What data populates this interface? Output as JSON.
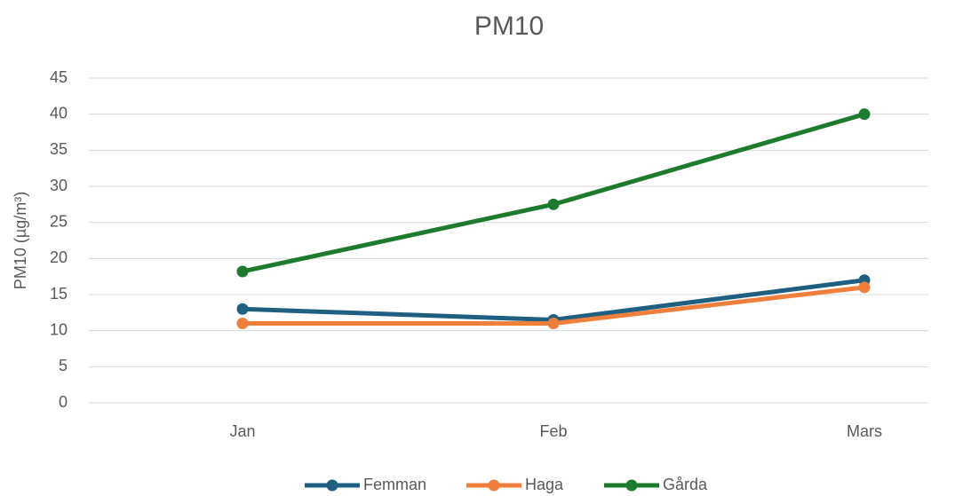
{
  "chart_data": {
    "type": "line",
    "title": "PM10",
    "y_label": "PM10 (µg/m³)",
    "categories": [
      "Jan",
      "Feb",
      "Mars"
    ],
    "series": [
      {
        "name": "Femman",
        "color": "#1f5f80",
        "values": [
          13,
          11.5,
          17
        ]
      },
      {
        "name": "Haga",
        "color": "#f07f3c",
        "values": [
          11,
          11,
          16
        ]
      },
      {
        "name": "Gårda",
        "color": "#1e7b2e",
        "values": [
          18.2,
          27.5,
          40
        ]
      }
    ],
    "ylim": [
      0,
      45
    ],
    "yticks": [
      0,
      5,
      10,
      15,
      20,
      25,
      30,
      35,
      40,
      45
    ],
    "grid": true,
    "legend": "bottom"
  }
}
